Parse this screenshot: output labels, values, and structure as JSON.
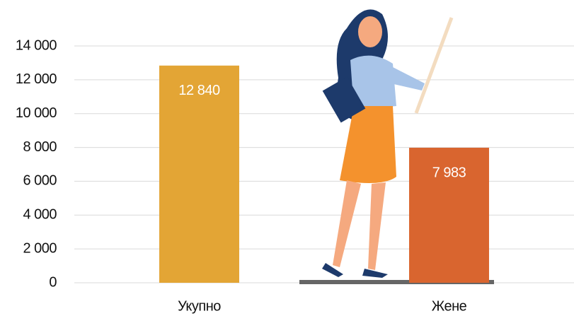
{
  "chart_data": {
    "type": "bar",
    "categories": [
      "Укупно",
      "Жене"
    ],
    "values": [
      12840,
      7983
    ],
    "value_labels": [
      "12 840",
      "7 983"
    ],
    "colors": [
      "#e3a535",
      "#d9652f"
    ],
    "ylim": [
      0,
      14000
    ],
    "yticks": [
      0,
      {
        "value": 2000,
        "label": "2 000"
      },
      {
        "value": 4000,
        "label": "4 000"
      },
      {
        "value": 6000,
        "label": "6 000"
      },
      {
        "value": 8000,
        "label": "8 000"
      },
      {
        "value": 10000,
        "label": "10 000"
      },
      {
        "value": 12000,
        "label": "12 000"
      },
      {
        "value": 14000,
        "label": "14 000"
      }
    ],
    "grid": true
  }
}
